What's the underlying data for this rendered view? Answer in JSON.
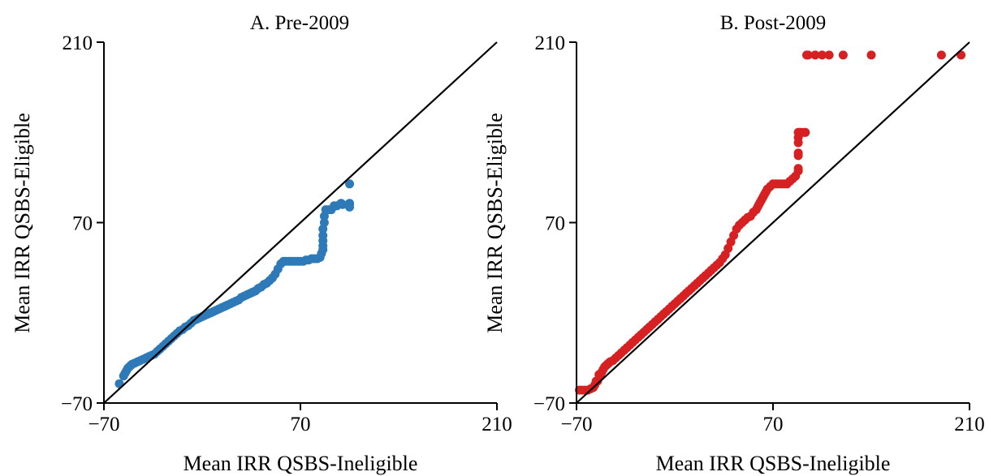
{
  "chart_data": [
    {
      "type": "scatter",
      "title": "A. Pre-2009",
      "xlabel": "Mean IRR QSBS-Ineligible",
      "ylabel": "Mean IRR QSBS-Eligible",
      "xlim": [
        -70,
        210
      ],
      "ylim": [
        -70,
        210
      ],
      "xticks": [
        "−70",
        "70",
        "210"
      ],
      "yticks": [
        "−70",
        "70",
        "210"
      ],
      "reference_line": "y = x",
      "grid": false,
      "color": "#2e7ab8",
      "x": [
        -59,
        -56,
        -55,
        -54,
        -53,
        -52,
        -51,
        -50,
        -48,
        -46,
        -44,
        -42,
        -40,
        -38,
        -36,
        -34,
        -32,
        -30,
        -28,
        -26,
        -24,
        -22,
        -20,
        -18,
        -16,
        -14,
        -12,
        -10,
        -8,
        -6,
        -4,
        -2,
        0,
        2,
        4,
        6,
        8,
        10,
        12,
        14,
        16,
        18,
        20,
        22,
        24,
        26,
        28,
        30,
        32,
        34,
        36,
        38,
        40,
        42,
        44,
        46,
        48,
        50,
        52,
        54,
        56,
        58,
        60,
        62,
        64,
        66,
        68,
        70,
        72,
        74,
        76,
        78,
        80,
        82,
        84,
        85,
        86,
        86,
        86,
        86,
        86,
        87,
        87,
        88,
        90,
        92,
        94,
        96,
        99,
        100,
        105,
        105,
        105,
        105
      ],
      "y": [
        -55,
        -49,
        -47,
        -45,
        -43,
        -42,
        -41,
        -40,
        -39,
        -38,
        -37,
        -36,
        -35,
        -34,
        -33,
        -32,
        -30,
        -28,
        -26,
        -24,
        -22,
        -20,
        -18,
        -16,
        -14,
        -13,
        -11,
        -10,
        -8,
        -6,
        -5,
        -4,
        -3,
        -2,
        -1,
        0,
        1,
        2,
        3,
        4,
        5,
        6,
        7,
        8,
        9,
        10,
        12,
        13,
        14,
        15,
        16,
        17,
        19,
        20,
        22,
        23,
        25,
        27,
        30,
        34,
        38,
        40,
        40,
        40,
        40,
        40,
        40,
        40,
        40,
        41,
        41,
        42,
        42,
        42,
        43,
        46,
        49,
        52,
        56,
        60,
        65,
        70,
        75,
        80,
        80,
        80,
        83,
        83,
        85,
        84,
        100,
        82,
        84,
        85
      ]
    },
    {
      "type": "scatter",
      "title": "B. Post-2009",
      "xlabel": "Mean IRR QSBS-Ineligible",
      "ylabel": "Mean IRR QSBS-Eligible",
      "xlim": [
        -70,
        210
      ],
      "ylim": [
        -70,
        210
      ],
      "xticks": [
        "−70",
        "70",
        "210"
      ],
      "yticks": [
        "−70",
        "70",
        "210"
      ],
      "reference_line": "y = x",
      "grid": false,
      "color": "#d62022",
      "x": [
        -68,
        -66,
        -64,
        -62,
        -60,
        -58,
        -57,
        -56,
        -55,
        -54,
        -53,
        -52,
        -51,
        -50,
        -49,
        -48,
        -47,
        -46,
        -44,
        -42,
        -40,
        -38,
        -36,
        -34,
        -32,
        -30,
        -28,
        -26,
        -24,
        -22,
        -20,
        -18,
        -16,
        -14,
        -12,
        -10,
        -8,
        -6,
        -4,
        -2,
        0,
        2,
        4,
        6,
        8,
        10,
        12,
        14,
        16,
        18,
        20,
        22,
        24,
        26,
        28,
        30,
        32,
        34,
        36,
        38,
        40,
        42,
        44,
        46,
        48,
        50,
        52,
        54,
        56,
        58,
        59,
        60,
        61,
        62,
        63,
        64,
        65,
        66,
        68,
        70,
        72,
        74,
        76,
        78,
        80,
        82,
        84,
        86,
        88,
        88,
        88,
        88,
        88,
        88,
        88,
        89,
        90,
        92,
        93,
        94,
        95,
        100,
        105,
        110,
        120,
        140,
        190,
        204
      ],
      "y": [
        -60,
        -60,
        -60,
        -60,
        -59,
        -58,
        -56,
        -53,
        -53,
        -48,
        -48,
        -46,
        -44,
        -42,
        -41,
        -40,
        -39,
        -38,
        -37,
        -35,
        -33,
        -31,
        -29,
        -27,
        -25,
        -23,
        -21,
        -19,
        -17,
        -15,
        -13,
        -11,
        -9,
        -7,
        -5,
        -3,
        -1,
        1,
        3,
        5,
        7,
        9,
        11,
        13,
        15,
        17,
        19,
        21,
        23,
        25,
        27,
        29,
        31,
        33,
        35,
        37,
        39,
        42,
        45,
        50,
        55,
        60,
        65,
        68,
        70,
        72,
        74,
        75,
        78,
        80,
        82,
        84,
        86,
        88,
        90,
        92,
        94,
        96,
        98,
        100,
        100,
        100,
        100,
        100,
        100,
        102,
        104,
        106,
        110,
        112,
        122,
        124,
        132,
        136,
        140,
        140,
        140,
        140,
        140,
        200,
        200,
        200,
        200,
        200,
        200,
        200,
        200,
        200
      ],
      "y_override_note": ""
    }
  ]
}
